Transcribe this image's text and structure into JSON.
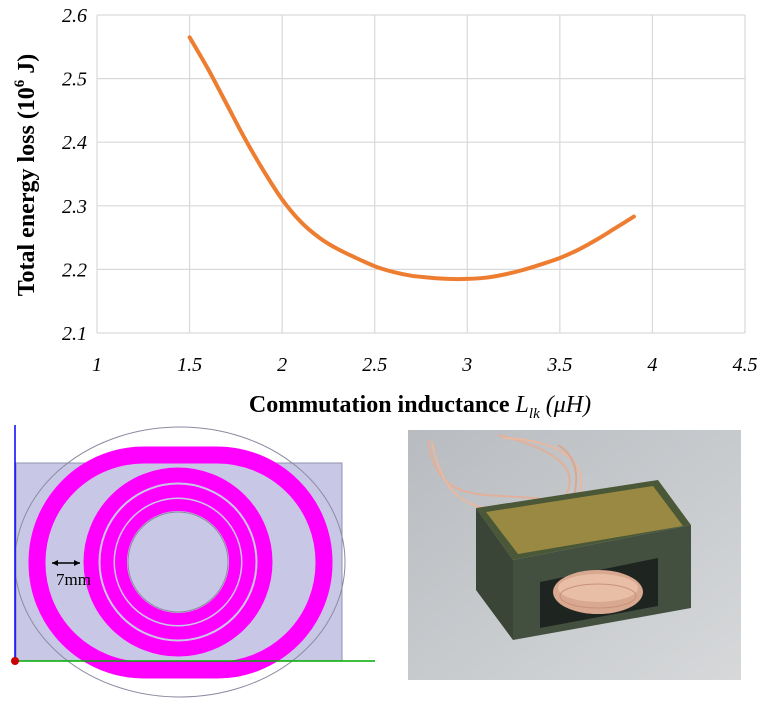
{
  "chart_data": {
    "type": "line",
    "xlabel_main": "Commutation inductance ",
    "xlabel_symbol": "L",
    "xlabel_sub": "lk",
    "xlabel_unit": " (μH)",
    "ylabel_main": "Total energy loss (10",
    "ylabel_sup": "6",
    "ylabel_unit": " J)",
    "xlim": [
      1,
      4.5
    ],
    "ylim": [
      2.1,
      2.6
    ],
    "x_ticks": [
      "1",
      "1.5",
      "2",
      "2.5",
      "3",
      "3.5",
      "4",
      "4.5"
    ],
    "y_ticks": [
      "2.1",
      "2.2",
      "2.3",
      "2.4",
      "2.5",
      "2.6"
    ],
    "grid": true,
    "series": [
      {
        "color": "#ED7D31",
        "x": [
          1.5,
          1.6,
          1.7,
          1.8,
          1.9,
          2.0,
          2.1,
          2.2,
          2.3,
          2.4,
          2.5,
          2.6,
          2.7,
          2.8,
          2.9,
          3.0,
          3.1,
          3.2,
          3.3,
          3.4,
          3.5,
          3.6,
          3.7,
          3.8,
          3.9
        ],
        "y": [
          2.565,
          2.515,
          2.46,
          2.405,
          2.355,
          2.31,
          2.275,
          2.25,
          2.232,
          2.218,
          2.205,
          2.196,
          2.19,
          2.187,
          2.185,
          2.185,
          2.187,
          2.192,
          2.199,
          2.208,
          2.218,
          2.231,
          2.247,
          2.265,
          2.283
        ]
      }
    ]
  },
  "coil": {
    "dimension_label": "7mm",
    "colors": {
      "winding": "#FF00FF",
      "core": "#C8C8E6",
      "axis_y": "#0000FF",
      "axis_x": "#00AA00",
      "origin": "#CC0000"
    }
  },
  "photo": {
    "colors": {
      "core": "#3B4A3A",
      "tape": "#C9B24A",
      "wire": "#E8B8A0",
      "background": "#C4C8CC"
    }
  }
}
